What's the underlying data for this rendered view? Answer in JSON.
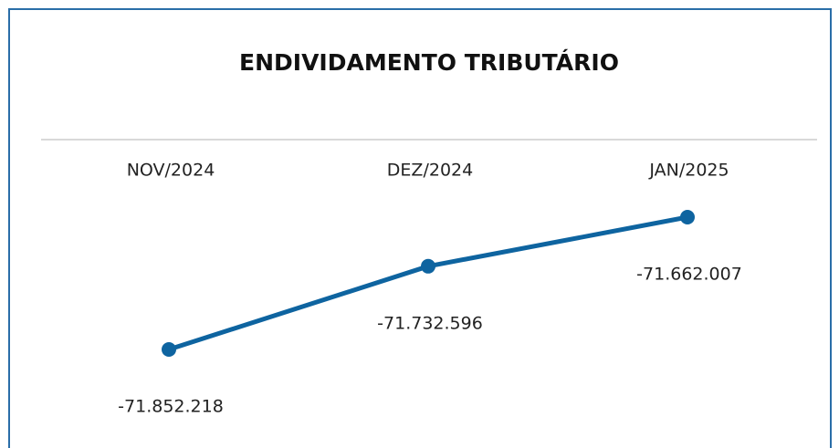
{
  "chart_data": {
    "type": "line",
    "title": "ENDIVIDAMENTO TRIBUTÁRIO",
    "categories": [
      "NOV/2024",
      "DEZ/2024",
      "JAN/2025"
    ],
    "values": [
      -71852218,
      -71732596,
      -71662007
    ],
    "value_labels": [
      "-71.852.218",
      "-71.732.596",
      "-71.662.007"
    ],
    "color": "#0e64a0"
  }
}
